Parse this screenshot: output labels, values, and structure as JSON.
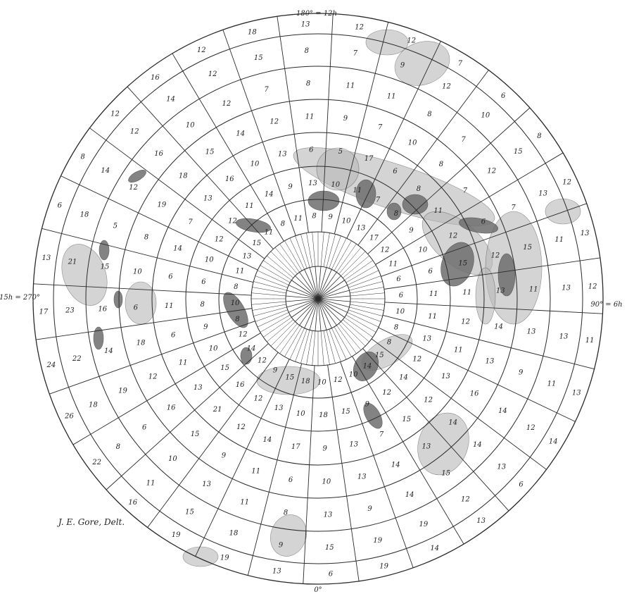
{
  "map": {
    "compass": {
      "top": "180° = 12h",
      "right": "90° = 6h",
      "left": "15h = 270°",
      "bottom": "0°"
    },
    "signature": "J. E. Gore, Delt.",
    "colors": {
      "line": "#2a2a2a",
      "stipple": "#b8b8b8",
      "dark": "#6e6e6e",
      "paper": "#ffffff"
    },
    "rings": [
      {
        "ring": 3,
        "values": [
          10,
          8,
          8,
          15,
          14,
          10,
          12,
          10,
          18,
          15,
          9,
          12,
          14,
          12,
          8,
          10,
          8,
          11,
          13,
          15,
          11,
          8,
          11,
          8,
          9,
          10,
          13,
          17,
          12,
          11,
          6,
          6
        ]
      },
      {
        "ring": 4,
        "values": [
          11,
          13,
          12,
          14,
          12,
          9,
          15,
          18,
          10,
          13,
          12,
          16,
          15,
          10,
          9,
          8,
          6,
          10,
          12,
          12,
          11,
          14,
          9,
          13,
          10,
          11,
          7,
          8,
          9,
          10,
          6,
          11
        ]
      },
      {
        "ring": 5,
        "values": [
          12,
          11,
          13,
          12,
          15,
          7,
          13,
          9,
          17,
          14,
          12,
          21,
          13,
          11,
          6,
          11,
          6,
          14,
          7,
          13,
          16,
          10,
          13,
          6,
          5,
          17,
          6,
          8,
          11,
          12,
          15,
          11
        ]
      },
      {
        "ring": 6,
        "values": [
          14,
          13,
          16,
          14,
          13,
          14,
          13,
          10,
          6,
          11,
          9,
          15,
          16,
          12,
          18,
          6,
          10,
          8,
          19,
          18,
          15,
          14,
          12,
          11,
          9,
          7,
          10,
          8,
          7,
          6,
          12,
          13
        ]
      },
      {
        "ring": 7,
        "values": [
          13,
          9,
          14,
          14,
          15,
          14,
          9,
          13,
          8,
          11,
          13,
          10,
          6,
          19,
          14,
          16,
          15,
          5,
          12,
          16,
          10,
          12,
          7,
          8,
          11,
          11,
          8,
          7,
          12,
          7,
          15,
          11
        ]
      },
      {
        "ring": 8,
        "values": [
          13,
          11,
          12,
          13,
          12,
          19,
          19,
          15,
          9,
          18,
          15,
          11,
          8,
          18,
          22,
          23,
          21,
          18,
          14,
          12,
          14,
          12,
          15,
          8,
          7,
          9,
          12,
          10,
          15,
          13,
          11,
          13
        ]
      },
      {
        "ring": 9,
        "values": [
          11,
          13,
          14,
          6,
          13,
          14,
          19,
          6,
          13,
          19,
          19,
          16,
          22,
          26,
          24,
          17,
          13,
          6,
          8,
          12,
          16,
          12,
          18,
          13,
          12,
          12,
          7,
          6,
          8,
          12,
          13,
          12
        ]
      }
    ]
  }
}
